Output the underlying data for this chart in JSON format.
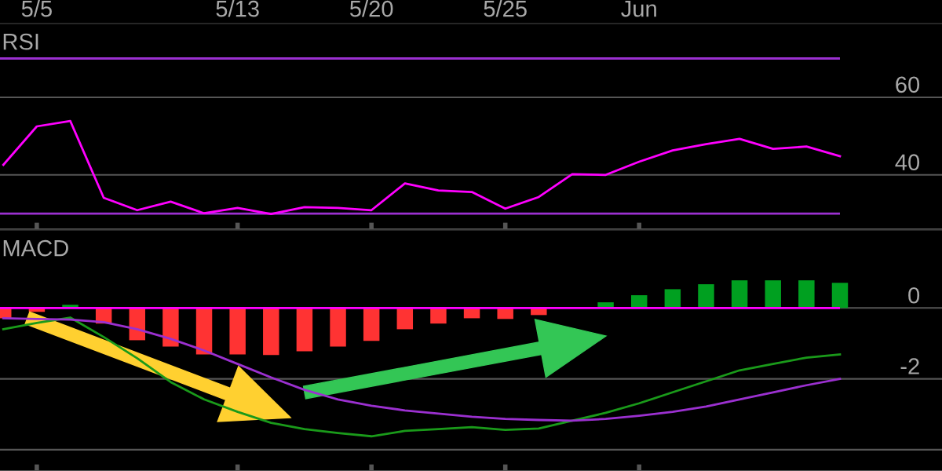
{
  "chart_data": [
    {
      "type": "line",
      "title": "RSI",
      "categories": [
        null,
        "5/5",
        null,
        null,
        null,
        null,
        null,
        "5/13",
        null,
        null,
        null,
        "5/20",
        null,
        null,
        null,
        "5/25",
        null,
        null,
        null,
        "Jun",
        null,
        null,
        null,
        null,
        null,
        null
      ],
      "ylim": [
        26,
        79
      ],
      "yticks": [
        40,
        60
      ],
      "grid": "y",
      "legend": false,
      "ref_lines": [
        {
          "axis": "y",
          "value": 70,
          "color": "#9b30d0"
        },
        {
          "axis": "y",
          "value": 30,
          "color": "#9b30d0"
        }
      ],
      "series": [
        {
          "color": "#ff00ff",
          "values": [
            42.6,
            52.5,
            53.9,
            34.1,
            30.9,
            33.1,
            30.1,
            31.5,
            29.9,
            31.7,
            31.5,
            30.9,
            37.8,
            36.0,
            35.6,
            31.3,
            34.3,
            40.2,
            40.0,
            43.4,
            46.3,
            47.9,
            49.3,
            46.7,
            47.3,
            44.8
          ]
        }
      ]
    },
    {
      "type": "bar",
      "title": "MACD",
      "categories": [
        null,
        null,
        null,
        null,
        null,
        null,
        null,
        null,
        null,
        null,
        null,
        null,
        null,
        null,
        null,
        null,
        null,
        null,
        null,
        null,
        null,
        null,
        null,
        null,
        null,
        null
      ],
      "ylim": [
        -4.6,
        2.2
      ],
      "yticks": [
        {
          "value": -4,
          "label": null
        },
        -2,
        0
      ],
      "grid": "y",
      "legend": false,
      "tick_labels": "y",
      "ref_lines": [
        {
          "axis": "y",
          "value": 0,
          "color": "#ff00ff"
        }
      ],
      "series": [
        {
          "type": "bar",
          "values": [
            -0.29,
            -0.11,
            0.09,
            -0.44,
            -0.91,
            -1.09,
            -1.31,
            -1.31,
            -1.33,
            -1.22,
            -1.09,
            -0.93,
            -0.6,
            -0.44,
            -0.29,
            -0.31,
            -0.2,
            null,
            0.16,
            0.36,
            0.53,
            0.67,
            0.78,
            0.78,
            0.78,
            0.71
          ],
          "colors": [
            "#ff3333",
            "#ff3333",
            "#00a020",
            "#ff3333",
            "#ff3333",
            "#ff3333",
            "#ff3333",
            "#ff3333",
            "#ff3333",
            "#ff3333",
            "#ff3333",
            "#ff3333",
            "#ff3333",
            "#ff3333",
            "#ff3333",
            "#ff3333",
            "#ff3333",
            "#ff3333",
            "#00a020",
            "#00a020",
            "#00a020",
            "#00a020",
            "#00a020",
            "#00a020",
            "#00a020",
            "#00a020"
          ]
        },
        {
          "type": "line",
          "color": "#1a9a1a",
          "values": [
            -0.6,
            -0.42,
            -0.27,
            -0.82,
            -1.42,
            -2.09,
            -2.58,
            -2.93,
            -3.24,
            -3.42,
            -3.53,
            -3.62,
            -3.47,
            -3.42,
            -3.36,
            -3.44,
            -3.4,
            -3.18,
            -2.96,
            -2.69,
            -2.38,
            -2.07,
            -1.76,
            -1.58,
            -1.4,
            -1.31
          ]
        },
        {
          "type": "line",
          "color": "#9b30d0",
          "values": [
            -0.29,
            -0.31,
            -0.33,
            -0.4,
            -0.6,
            -0.87,
            -1.2,
            -1.58,
            -1.96,
            -2.31,
            -2.58,
            -2.76,
            -2.89,
            -2.98,
            -3.07,
            -3.13,
            -3.16,
            -3.18,
            -3.13,
            -3.04,
            -2.93,
            -2.78,
            -2.58,
            -2.38,
            -2.18,
            -2.0
          ]
        }
      ]
    }
  ]
}
